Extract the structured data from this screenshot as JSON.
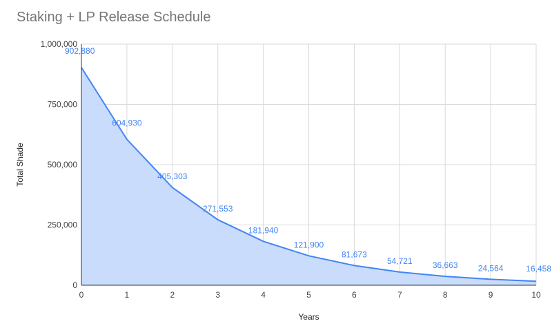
{
  "chart_data": {
    "type": "area",
    "title": "Staking + LP Release Schedule",
    "xlabel": "Years",
    "ylabel": "Total Shade",
    "x": [
      0,
      1,
      2,
      3,
      4,
      5,
      6,
      7,
      8,
      9,
      10
    ],
    "series": [
      {
        "values": [
          902880,
          604930,
          405303,
          271553,
          181940,
          121900,
          81673,
          54721,
          36663,
          24564,
          16458
        ]
      }
    ],
    "data_labels": [
      "902,880",
      "604,930",
      "405,303",
      "271,553",
      "181,940",
      "121,900",
      "81,673",
      "54,721",
      "36,663",
      "24,564",
      "16,458"
    ],
    "x_ticks": [
      "0",
      "1",
      "2",
      "3",
      "4",
      "5",
      "6",
      "7",
      "8",
      "9",
      "10"
    ],
    "y_ticks": [
      {
        "value": 0,
        "label": "0"
      },
      {
        "value": 250000,
        "label": "250,000"
      },
      {
        "value": 500000,
        "label": "500,000"
      },
      {
        "value": 750000,
        "label": "750,000"
      },
      {
        "value": 1000000,
        "label": "1,000,000"
      }
    ],
    "xlim": [
      0,
      10
    ],
    "ylim": [
      0,
      1000000
    ],
    "grid": true,
    "legend": "none",
    "colors": {
      "line": "#4285f4",
      "fill": "#c6dafc",
      "grid": "#d9d9d9",
      "axis": "#333333"
    }
  }
}
